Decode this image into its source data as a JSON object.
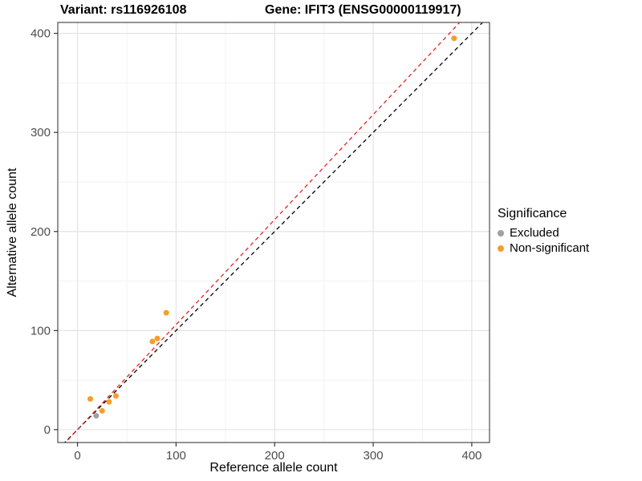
{
  "title": {
    "left": "Variant: rs116926108",
    "right": "Gene: IFIT3 (ENSG00000119917)"
  },
  "axes": {
    "x_label": "Reference allele count",
    "y_label": "Alternative allele count"
  },
  "legend": {
    "title": "Significance",
    "items": [
      {
        "label": "Excluded",
        "color": "#a0a0a0"
      },
      {
        "label": "Non-significant",
        "color": "#f59e2b"
      }
    ]
  },
  "chart_data": {
    "type": "scatter",
    "title": "Variant: rs116926108   Gene: IFIT3 (ENSG00000119917)",
    "xlabel": "Reference allele count",
    "ylabel": "Alternative allele count",
    "xlim": [
      -20,
      418
    ],
    "ylim": [
      -13,
      411
    ],
    "x_ticks": [
      0,
      100,
      200,
      300,
      400
    ],
    "y_ticks": [
      0,
      100,
      200,
      300,
      400
    ],
    "x_minor_ticks": [
      50,
      150,
      250,
      350
    ],
    "y_minor_ticks": [
      50,
      150,
      250,
      350
    ],
    "grid": true,
    "legend_position": "right",
    "series": [
      {
        "name": "Excluded",
        "color": "#a0a0a0",
        "points": [
          [
            19,
            14
          ]
        ]
      },
      {
        "name": "Non-significant",
        "color": "#f59e2b",
        "points": [
          [
            13,
            31
          ],
          [
            25,
            19
          ],
          [
            32,
            28
          ],
          [
            39,
            34
          ],
          [
            76,
            89
          ],
          [
            81,
            92
          ],
          [
            90,
            118
          ],
          [
            382,
            395
          ]
        ]
      }
    ],
    "lines": [
      {
        "name": "identity",
        "color": "#000000",
        "dash": "5 4",
        "slope": 1,
        "intercept": 0
      },
      {
        "name": "fit",
        "color": "#e32222",
        "dash": "5 4",
        "slope": 1.06,
        "intercept": 0
      }
    ]
  }
}
